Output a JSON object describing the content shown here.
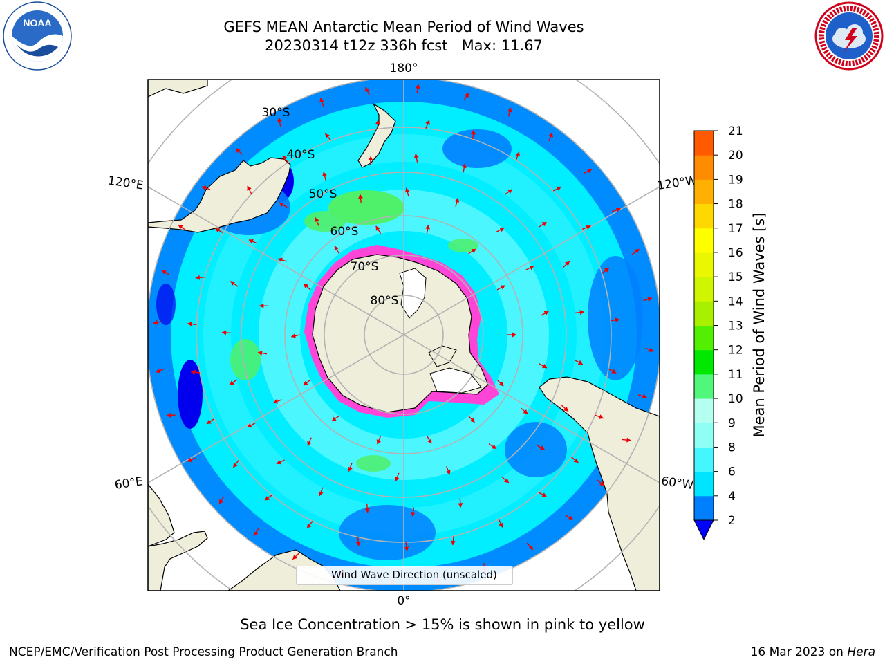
{
  "title": {
    "line1": "GEFS MEAN Antarctic Mean Period of Wind Waves",
    "line2": "20230314 t12z 336h fcst   Max: 11.67"
  },
  "map": {
    "projection": "south-polar-stereographic",
    "longitude_labels": [
      "180°",
      "120°E",
      "120°W",
      "60°E",
      "60°W",
      "0°"
    ],
    "latitude_labels": [
      "30°S",
      "40°S",
      "50°S",
      "60°S",
      "70°S",
      "80°S"
    ],
    "colors": {
      "land": "#efeeda",
      "ocean_base": "#00eeff",
      "ocean_light": "#5ef8ff",
      "ocean_blue": "#0080ff",
      "ocean_deep": "#0000ee",
      "green": "#4ff06a",
      "ice_pink": "#ff44d8",
      "ice_white": "#ffffff",
      "arrow": "#ee0000",
      "graticule": "#b3b3b3"
    },
    "legend": {
      "label": "Wind Wave Direction (unscaled)"
    }
  },
  "colorbar": {
    "label": "Mean Period of Wind Waves [s]",
    "ticks": [
      "2",
      "4",
      "6",
      "8",
      "9",
      "10",
      "11",
      "12",
      "13",
      "14",
      "15",
      "16",
      "17",
      "18",
      "19",
      "20",
      "21"
    ],
    "band_colors": [
      "#0080ff",
      "#00e5ff",
      "#45f6ff",
      "#8dfff5",
      "#b4fff0",
      "#50f77a",
      "#00e800",
      "#52f000",
      "#a8f000",
      "#d0f500",
      "#eaf700",
      "#ffff00",
      "#ffd800",
      "#ffb000",
      "#ff8c00",
      "#ff5a00",
      "#ff2a00",
      "#ff0000"
    ],
    "under_color": "#0000ff"
  },
  "caption": "Sea Ice Concentration > 15% is shown in pink to yellow",
  "footer": {
    "left": "NCEP/EMC/Verification Post Processing Product Generation Branch",
    "right_prefix": "16 Mar 2023 on ",
    "right_host": "Hera"
  },
  "logos": {
    "noaa_text": "NOAA"
  }
}
